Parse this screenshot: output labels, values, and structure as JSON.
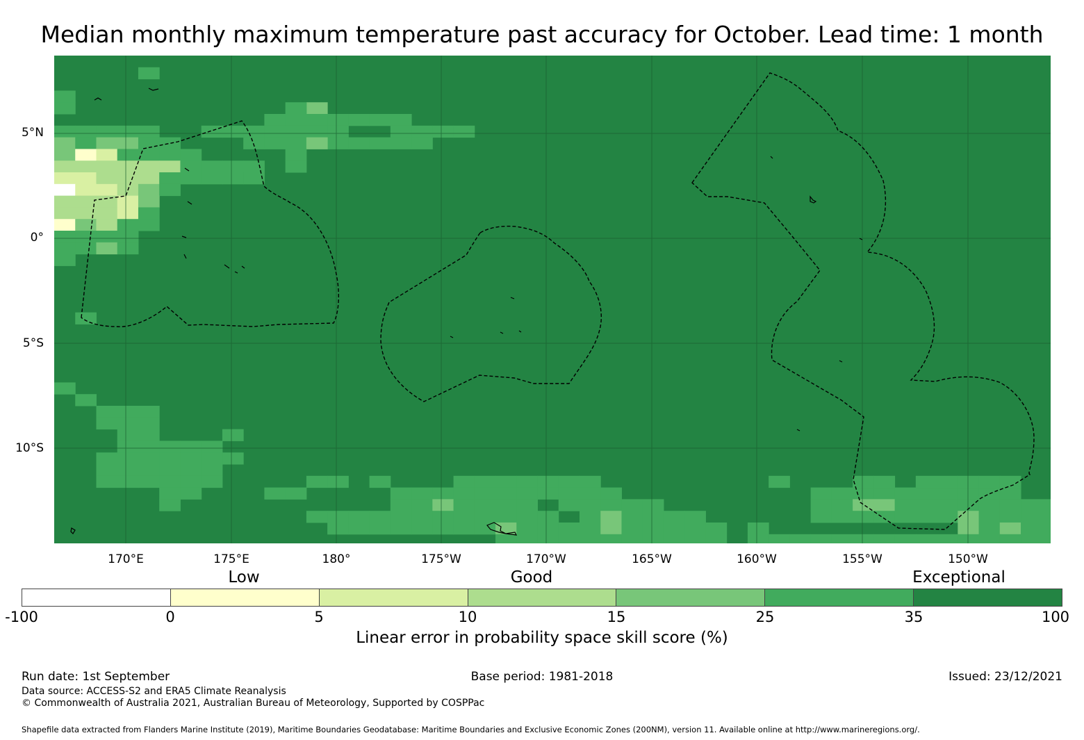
{
  "title": "Median monthly maximum temperature past accuracy for October. Lead time: 1 month",
  "map": {
    "lat_labels": [
      "5°N",
      "0°",
      "5°S",
      "10°S"
    ],
    "lon_labels": [
      "170°E",
      "175°E",
      "180°",
      "175°W",
      "170°W",
      "165°W",
      "160°W",
      "155°W",
      "150°W"
    ],
    "ocean_color": "#238443",
    "grid_color": "#1a5e30"
  },
  "colorbar": {
    "category_labels": [
      "Low",
      "Good",
      "Exceptional"
    ],
    "tick_labels": [
      "-100",
      "0",
      "5",
      "10",
      "15",
      "25",
      "35",
      "100"
    ],
    "colors": [
      "#ffffff",
      "#ffffcc",
      "#d9f0a3",
      "#addd8e",
      "#78c679",
      "#41ab5d",
      "#238443"
    ],
    "label": "Linear error in probability space skill score (%)"
  },
  "footer": {
    "run_date": "Run date: 1st September",
    "base_period": "Base period: 1981-2018",
    "issued": "Issued: 23/12/2021",
    "data_source": "Data source: ACCESS-S2 and ERA5 Climate Reanalysis",
    "copyright": "© Commonwealth of Australia 2021, Australian Bureau of Meteorology, Supported by COSPPac",
    "shapefile": "Shapefile data extracted from Flanders Marine Institute (2019), Maritime Boundaries Geodatabase: Maritime Boundaries and Exclusive Economic Zones (200NM), version 11. Available online at http://www.marineregions.org/."
  }
}
